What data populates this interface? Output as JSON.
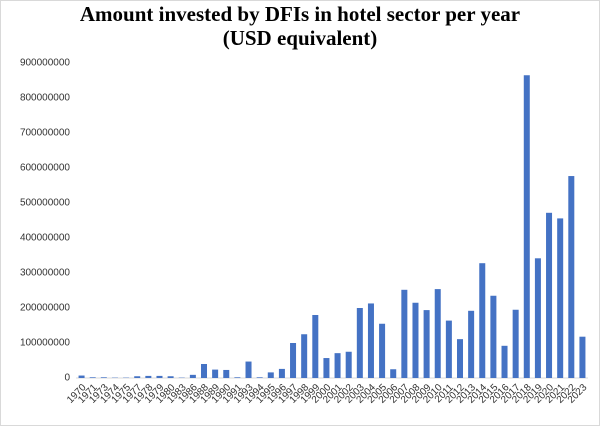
{
  "chart_data": {
    "type": "bar",
    "title": [
      "Amount invested by DFIs in hotel sector per year",
      "(USD equivalent)"
    ],
    "categories": [
      "1970",
      "1971",
      "1973",
      "1974",
      "1975",
      "1977",
      "1978",
      "1979",
      "1980",
      "1983",
      "1986",
      "1988",
      "1989",
      "1990",
      "1991",
      "1993",
      "1994",
      "1995",
      "1996",
      "1997",
      "1998",
      "1999",
      "2000",
      "2001",
      "2002",
      "2003",
      "2004",
      "2005",
      "2006",
      "2007",
      "2008",
      "2009",
      "2010",
      "2011",
      "2012",
      "2013",
      "2014",
      "2015",
      "2016",
      "2017",
      "2018",
      "2019",
      "2020",
      "2021",
      "2022",
      "2023"
    ],
    "values": [
      7000000,
      2000000,
      2000000,
      1000000,
      1000000,
      5000000,
      6000000,
      6000000,
      5000000,
      1000000,
      9000000,
      40000000,
      24000000,
      23000000,
      2000000,
      47000000,
      2000000,
      16000000,
      26000000,
      100000000,
      125000000,
      180000000,
      57000000,
      71000000,
      75000000,
      200000000,
      213000000,
      155000000,
      25000000,
      252000000,
      215000000,
      194000000,
      254000000,
      164000000,
      111000000,
      192000000,
      328000000,
      235000000,
      92000000,
      195000000,
      865000000,
      342000000,
      472000000,
      456000000,
      577000000,
      118000000
    ],
    "color": "#4472c4",
    "ylim": [
      0,
      900000000
    ],
    "yticks": [
      0,
      100000000,
      200000000,
      300000000,
      400000000,
      500000000,
      600000000,
      700000000,
      800000000,
      900000000
    ],
    "grid": false
  }
}
